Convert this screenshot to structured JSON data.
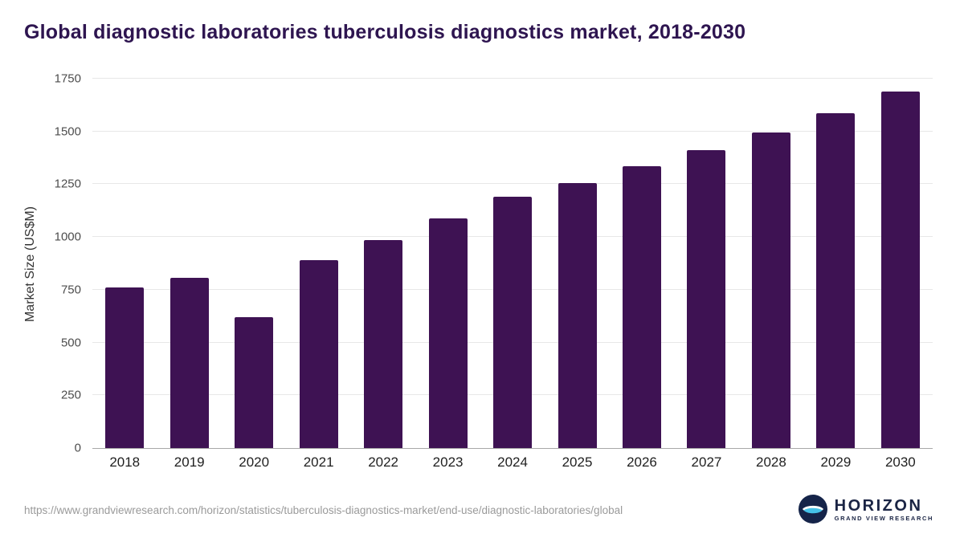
{
  "page": {
    "title": "Global diagnostic laboratories tuberculosis diagnostics market, 2018-2030",
    "source_url": "https://www.grandviewresearch.com/horizon/statistics/tuberculosis-diagnostics-market/end-use/diagnostic-laboratories/global",
    "logo": {
      "brand": "HORIZON",
      "tagline": "GRAND VIEW RESEARCH"
    }
  },
  "colors": {
    "bar": "#3e1253",
    "title": "#2e1550",
    "logo_navy": "#152449",
    "logo_blue": "#45c2e8"
  },
  "chart_data": {
    "type": "bar",
    "title": "Global diagnostic laboratories tuberculosis diagnostics market, 2018-2030",
    "xlabel": "",
    "ylabel": "Market Size (US$M)",
    "categories": [
      "2018",
      "2019",
      "2020",
      "2021",
      "2022",
      "2023",
      "2024",
      "2025",
      "2026",
      "2027",
      "2028",
      "2029",
      "2030"
    ],
    "values": [
      760,
      805,
      620,
      890,
      985,
      1090,
      1190,
      1255,
      1335,
      1410,
      1495,
      1585,
      1690
    ],
    "ylim": [
      0,
      1750
    ],
    "yticks": [
      0,
      250,
      500,
      750,
      1000,
      1250,
      1500,
      1750
    ],
    "grid": true,
    "legend": false
  }
}
